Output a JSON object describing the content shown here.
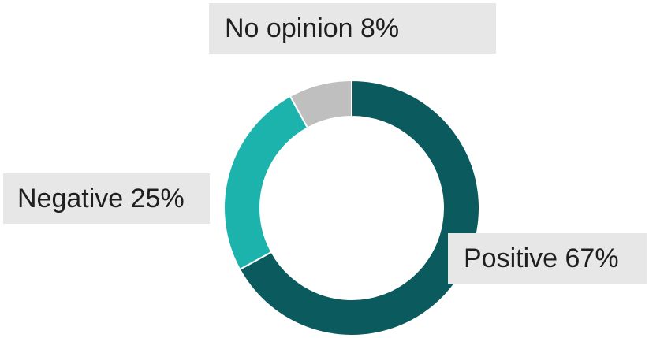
{
  "chart_data": {
    "type": "pie",
    "variant": "donut",
    "title": "",
    "slices": [
      {
        "label": "Positive",
        "value": 67,
        "display": "Positive 67%",
        "color": "#0b5a5e"
      },
      {
        "label": "Negative",
        "value": 25,
        "display": "Negative 25%",
        "color": "#1db3ad"
      },
      {
        "label": "No opinion",
        "value": 8,
        "display": "No opinion 8%",
        "color": "#bfbfbf"
      }
    ],
    "start_angle_deg": 0,
    "direction": "clockwise",
    "legend": "none",
    "data_labels": "outside, boxed"
  }
}
